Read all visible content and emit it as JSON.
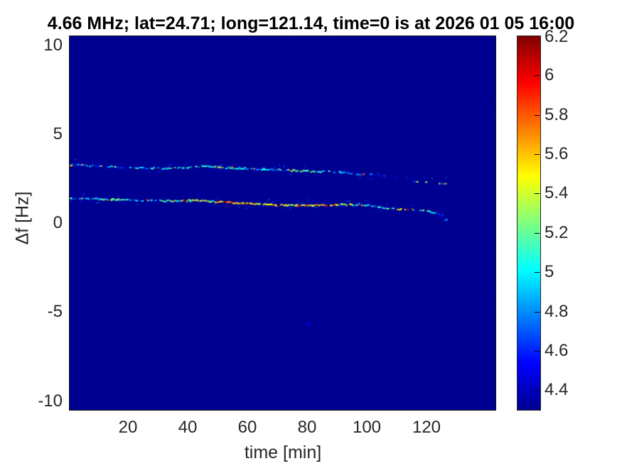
{
  "chart_data": {
    "type": "heatmap",
    "title": "4.66 MHz;  lat=24.71; long=121.14, time=0 is at 2026 01 05 16:00",
    "xlabel": "time [min]",
    "ylabel": "Δf [Hz]",
    "xlim": [
      0.5,
      143
    ],
    "ylim": [
      -10.5,
      10.5
    ],
    "xticks": [
      20,
      40,
      60,
      80,
      100,
      120
    ],
    "yticks": [
      10,
      5,
      0,
      -5,
      -10
    ],
    "grid": false,
    "legend": "none",
    "colorbar": {
      "position": "right",
      "clim": [
        4.3,
        6.2
      ],
      "tick_values": [
        4.4,
        4.6,
        4.8,
        5.0,
        5.2,
        5.4,
        5.6,
        5.8,
        6.0,
        6.2
      ],
      "tick_labels": [
        "4.4",
        "4.6",
        "4.8",
        "5",
        "5.2",
        "5.4",
        "5.6",
        "5.8",
        "6",
        "6.2"
      ],
      "colormap": "jet",
      "colormap_stops": [
        [
          0.0,
          "#000090"
        ],
        [
          0.125,
          "#0000ff"
        ],
        [
          0.375,
          "#00ffff"
        ],
        [
          0.625,
          "#ffff00"
        ],
        [
          0.875,
          "#ff0000"
        ],
        [
          1.0,
          "#800000"
        ]
      ]
    },
    "background_value": 4.3,
    "tracks": [
      {
        "name": "upper-doppler-track",
        "points": [
          [
            0.5,
            3.3,
            4.75,
            0.85
          ],
          [
            8,
            3.26,
            4.8,
            0.8
          ],
          [
            15,
            3.18,
            4.75,
            0.75
          ],
          [
            24,
            3.14,
            4.85,
            0.8
          ],
          [
            32,
            3.1,
            4.9,
            0.85
          ],
          [
            38,
            3.16,
            5.05,
            0.85
          ],
          [
            46,
            3.22,
            5.0,
            0.9
          ],
          [
            52,
            3.16,
            5.1,
            0.9
          ],
          [
            60,
            3.1,
            4.9,
            0.85
          ],
          [
            68,
            3.04,
            4.8,
            0.8
          ],
          [
            75,
            2.98,
            5.0,
            0.85
          ],
          [
            82,
            2.94,
            5.1,
            0.8
          ],
          [
            89,
            2.9,
            4.8,
            0.6
          ],
          [
            96,
            2.82,
            4.7,
            0.5
          ],
          [
            101,
            2.76,
            4.65,
            0.45
          ],
          [
            106,
            2.66,
            4.6,
            0.4
          ],
          [
            110,
            2.56,
            4.6,
            0.4
          ],
          [
            115,
            2.42,
            4.55,
            0.35
          ],
          [
            120,
            2.3,
            4.55,
            0.35
          ],
          [
            124,
            2.22,
            4.6,
            0.4
          ],
          [
            126.5,
            2.24,
            4.8,
            0.7
          ]
        ]
      },
      {
        "name": "lower-doppler-track",
        "points": [
          [
            0.5,
            1.42,
            4.85,
            0.9
          ],
          [
            8,
            1.38,
            4.9,
            0.85
          ],
          [
            14,
            1.36,
            5.2,
            0.85
          ],
          [
            20,
            1.32,
            4.9,
            0.8
          ],
          [
            28,
            1.3,
            5.0,
            0.85
          ],
          [
            36,
            1.28,
            5.2,
            0.9
          ],
          [
            42,
            1.3,
            5.45,
            0.95
          ],
          [
            48,
            1.26,
            5.55,
            0.95
          ],
          [
            55,
            1.18,
            5.6,
            0.95
          ],
          [
            62,
            1.1,
            5.55,
            0.95
          ],
          [
            70,
            1.04,
            5.6,
            0.95
          ],
          [
            78,
            1.02,
            5.65,
            0.95
          ],
          [
            85,
            1.04,
            5.55,
            0.95
          ],
          [
            92,
            1.06,
            5.4,
            0.9
          ],
          [
            97,
            1.08,
            5.2,
            0.85
          ],
          [
            103,
            0.96,
            5.1,
            0.8
          ],
          [
            108,
            0.86,
            5.0,
            0.75
          ],
          [
            111,
            0.82,
            5.55,
            0.7
          ],
          [
            117,
            0.76,
            5.1,
            0.65
          ],
          [
            121,
            0.68,
            4.9,
            0.6
          ],
          [
            124,
            0.52,
            4.8,
            0.7
          ],
          [
            126,
            0.2,
            4.75,
            0.8
          ],
          [
            126.8,
            0.1,
            4.7,
            0.8
          ]
        ]
      }
    ],
    "faint_specks": [
      {
        "t": 80.5,
        "df": -5.7,
        "value": 4.5,
        "w": 8,
        "h": 6
      }
    ],
    "noise": {
      "seed": 42,
      "background_count": 420,
      "background_value_range": [
        4.32,
        4.48
      ],
      "near_track_count": 300,
      "near_track_spread_hz": 0.28,
      "near_track_value_range": [
        4.4,
        4.72
      ]
    }
  },
  "colors": {
    "figure_background": "#ffffff",
    "plot_background": "#000090",
    "axis_text": "#262626",
    "title_text": "#000000"
  }
}
